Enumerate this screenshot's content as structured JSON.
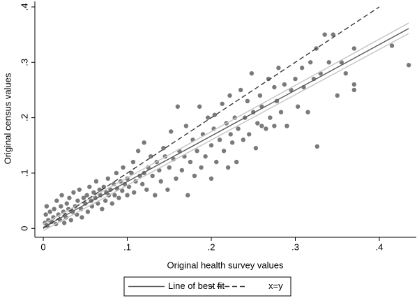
{
  "chart_data": {
    "type": "scatter",
    "xlabel": "Original health survey values",
    "ylabel": "Original census values",
    "xlim": [
      -0.01,
      0.444
    ],
    "ylim": [
      -0.016,
      0.41
    ],
    "xticks": [
      0,
      {
        "value": 0.1,
        "label": ".1"
      },
      {
        "value": 0.2,
        "label": ".2"
      },
      {
        "value": 0.3,
        "label": ".3"
      },
      {
        "value": 0.4,
        "label": ".4"
      }
    ],
    "yticks": [
      0,
      {
        "value": 0.1,
        "label": ".1"
      },
      {
        "value": 0.2,
        "label": ".2"
      },
      {
        "value": 0.3,
        "label": ".3"
      },
      {
        "value": 0.4,
        "label": ".4"
      }
    ],
    "points": {
      "color": "#7a7a7a",
      "x": [
        0.002,
        0.003,
        0.004,
        0.005,
        0.006,
        0.008,
        0.01,
        0.012,
        0.013,
        0.015,
        0.016,
        0.018,
        0.02,
        0.021,
        0.022,
        0.024,
        0.025,
        0.027,
        0.028,
        0.03,
        0.031,
        0.033,
        0.035,
        0.036,
        0.038,
        0.04,
        0.041,
        0.043,
        0.045,
        0.046,
        0.048,
        0.05,
        0.052,
        0.053,
        0.055,
        0.057,
        0.058,
        0.06,
        0.062,
        0.063,
        0.065,
        0.067,
        0.068,
        0.07,
        0.072,
        0.074,
        0.075,
        0.077,
        0.078,
        0.08,
        0.082,
        0.084,
        0.085,
        0.087,
        0.088,
        0.09,
        0.092,
        0.094,
        0.095,
        0.097,
        0.1,
        0.1,
        0.102,
        0.105,
        0.107,
        0.108,
        0.11,
        0.113,
        0.115,
        0.118,
        0.12,
        0.12,
        0.123,
        0.125,
        0.128,
        0.13,
        0.133,
        0.135,
        0.138,
        0.14,
        0.143,
        0.145,
        0.148,
        0.15,
        0.152,
        0.155,
        0.158,
        0.16,
        0.162,
        0.165,
        0.168,
        0.17,
        0.172,
        0.175,
        0.178,
        0.18,
        0.183,
        0.186,
        0.188,
        0.19,
        0.193,
        0.196,
        0.2,
        0.2,
        0.203,
        0.206,
        0.21,
        0.213,
        0.215,
        0.218,
        0.22,
        0.223,
        0.225,
        0.228,
        0.23,
        0.232,
        0.235,
        0.238,
        0.24,
        0.243,
        0.245,
        0.248,
        0.25,
        0.253,
        0.255,
        0.258,
        0.26,
        0.265,
        0.268,
        0.27,
        0.275,
        0.278,
        0.28,
        0.283,
        0.287,
        0.29,
        0.295,
        0.3,
        0.303,
        0.308,
        0.31,
        0.315,
        0.318,
        0.322,
        0.325,
        0.326,
        0.33,
        0.335,
        0.34,
        0.345,
        0.35,
        0.355,
        0.36,
        0.37,
        0.37,
        0.37,
        0.415,
        0.435,
        0.26,
        0.275,
        0.29,
        0.222,
        0.204
      ],
      "values": [
        0.01,
        0.025,
        0.04,
        0.005,
        0.015,
        0.03,
        0.012,
        0.02,
        0.035,
        0.008,
        0.05,
        0.025,
        0.015,
        0.04,
        0.06,
        0.03,
        0.01,
        0.02,
        0.045,
        0.035,
        0.055,
        0.015,
        0.03,
        0.065,
        0.04,
        0.025,
        0.05,
        0.07,
        0.035,
        0.02,
        0.055,
        0.045,
        0.06,
        0.03,
        0.075,
        0.05,
        0.04,
        0.065,
        0.055,
        0.085,
        0.045,
        0.07,
        0.06,
        0.035,
        0.075,
        0.05,
        0.065,
        0.09,
        0.06,
        0.07,
        0.045,
        0.08,
        0.06,
        0.1,
        0.072,
        0.055,
        0.085,
        0.068,
        0.11,
        0.08,
        0.06,
        0.09,
        0.075,
        0.1,
        0.12,
        0.065,
        0.085,
        0.14,
        0.095,
        0.08,
        0.1,
        0.155,
        0.07,
        0.11,
        0.13,
        0.095,
        0.06,
        0.12,
        0.105,
        0.085,
        0.145,
        0.13,
        0.07,
        0.11,
        0.175,
        0.125,
        0.09,
        0.22,
        0.14,
        0.105,
        0.13,
        0.185,
        0.06,
        0.12,
        0.16,
        0.095,
        0.14,
        0.22,
        0.11,
        0.17,
        0.13,
        0.2,
        0.15,
        0.09,
        0.18,
        0.12,
        0.16,
        0.225,
        0.14,
        0.19,
        0.11,
        0.17,
        0.155,
        0.2,
        0.12,
        0.18,
        0.25,
        0.16,
        0.2,
        0.23,
        0.17,
        0.28,
        0.21,
        0.145,
        0.19,
        0.24,
        0.22,
        0.18,
        0.27,
        0.2,
        0.255,
        0.23,
        0.29,
        0.21,
        0.26,
        0.185,
        0.25,
        0.27,
        0.22,
        0.29,
        0.255,
        0.21,
        0.3,
        0.27,
        0.325,
        0.148,
        0.28,
        0.35,
        0.3,
        0.35,
        0.24,
        0.3,
        0.28,
        0.325,
        0.25,
        0.26,
        0.33,
        0.295,
        0.185,
        0.185,
        0.185,
        0.24,
        0.205
      ]
    },
    "confidence_band": {
      "color": "#c8c8c8",
      "x": [
        0,
        0.435
      ],
      "lower": [
        -0.004,
        0.352
      ],
      "upper": [
        0.008,
        0.371
      ]
    },
    "series": [
      {
        "name": "Line of best fit",
        "color": "#5a5a5a",
        "dashed": false,
        "x": [
          0,
          0.435
        ],
        "values": [
          0.002,
          0.361
        ]
      },
      {
        "name": "x=y",
        "color": "#3a3a3a",
        "dashed": true,
        "x": [
          0,
          0.4
        ],
        "values": [
          0,
          0.4
        ]
      }
    ]
  }
}
